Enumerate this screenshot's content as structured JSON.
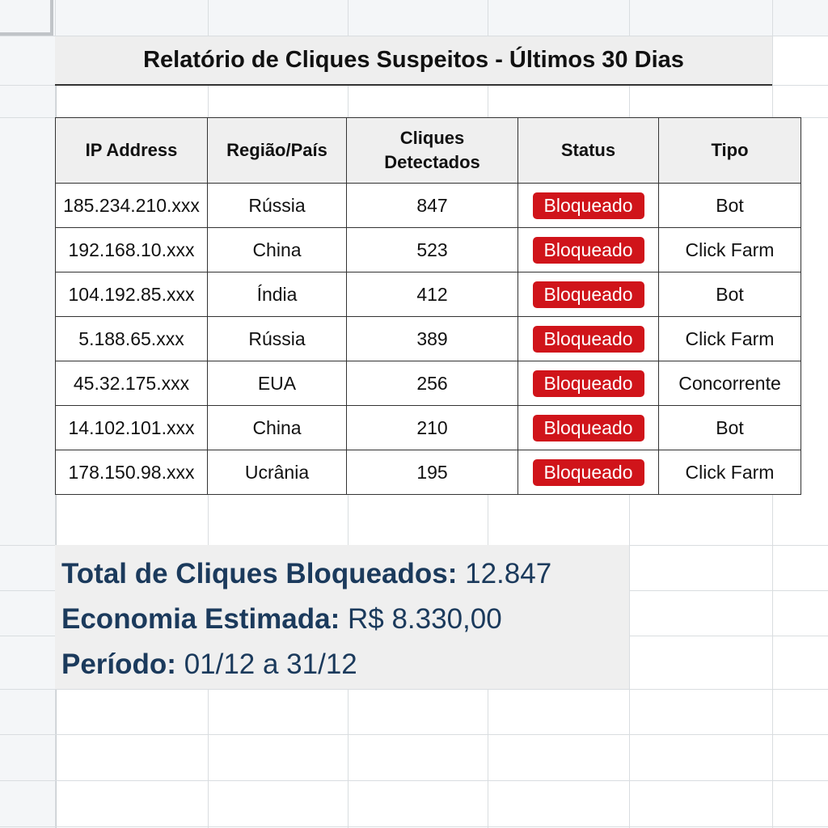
{
  "report": {
    "title": "Relatório de Cliques Suspeitos - Últimos 30 Dias",
    "columns": [
      "IP Address",
      "Região/País",
      "Cliques Detectados",
      "Status",
      "Tipo"
    ],
    "rows": [
      {
        "ip": "185.234.210.xxx",
        "region": "Rússia",
        "clicks": "847",
        "status": "Bloqueado",
        "type": "Bot"
      },
      {
        "ip": "192.168.10.xxx",
        "region": "China",
        "clicks": "523",
        "status": "Bloqueado",
        "type": "Click Farm"
      },
      {
        "ip": "104.192.85.xxx",
        "region": "Índia",
        "clicks": "412",
        "status": "Bloqueado",
        "type": "Bot"
      },
      {
        "ip": "5.188.65.xxx",
        "region": "Rússia",
        "clicks": "389",
        "status": "Bloqueado",
        "type": "Click Farm"
      },
      {
        "ip": "45.32.175.xxx",
        "region": "EUA",
        "clicks": "256",
        "status": "Bloqueado",
        "type": "Concorrente"
      },
      {
        "ip": "14.102.101.xxx",
        "region": "China",
        "clicks": "210",
        "status": "Bloqueado",
        "type": "Bot"
      },
      {
        "ip": "178.150.98.xxx",
        "region": "Ucrânia",
        "clicks": "195",
        "status": "Bloqueado",
        "type": "Click Farm"
      }
    ],
    "status_color": "#d0141a"
  },
  "summary": {
    "total_label": "Total de Cliques Bloqueados:",
    "total_value": "12.847",
    "savings_label": "Economia Estimada:",
    "savings_value": "R$ 8.330,00",
    "period_label": "Período:",
    "period_value": "01/12 a 31/12",
    "text_color": "#1b3a5c"
  }
}
